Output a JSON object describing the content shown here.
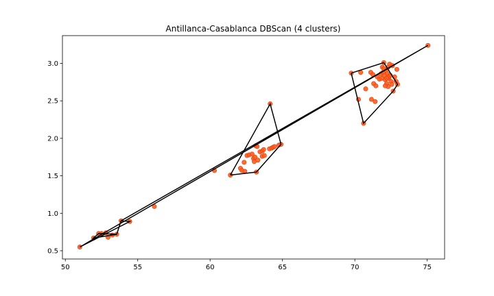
{
  "chart_data": {
    "type": "scatter",
    "title": "Antillanca-Casablanca DBScan (4 clusters)",
    "xlabel": "",
    "ylabel": "",
    "xlim": [
      49.8,
      76.2
    ],
    "ylim": [
      0.39,
      3.37
    ],
    "xticks": [
      50,
      55,
      60,
      65,
      70,
      75
    ],
    "yticks": [
      0.5,
      1.0,
      1.5,
      2.0,
      2.5,
      3.0
    ],
    "xtick_labels": [
      "50",
      "55",
      "60",
      "65",
      "70",
      "75"
    ],
    "ytick_labels": [
      "0.5",
      "1.0",
      "1.5",
      "2.0",
      "2.5",
      "3.0"
    ],
    "grid": false,
    "point_color": "#ff5a1f",
    "point_edge_color": "#d9480f",
    "line_color": "#000000",
    "points": [
      [
        51.0,
        0.55
      ],
      [
        51.95,
        0.67
      ],
      [
        52.3,
        0.73
      ],
      [
        52.5,
        0.73
      ],
      [
        52.8,
        0.74
      ],
      [
        52.95,
        0.68
      ],
      [
        53.25,
        0.71
      ],
      [
        53.55,
        0.72
      ],
      [
        53.85,
        0.9
      ],
      [
        54.45,
        0.89
      ],
      [
        56.15,
        1.09
      ],
      [
        60.3,
        1.57
      ],
      [
        61.4,
        1.51
      ],
      [
        62.1,
        1.6
      ],
      [
        62.2,
        1.57
      ],
      [
        62.35,
        1.68
      ],
      [
        62.4,
        1.56
      ],
      [
        62.55,
        1.77
      ],
      [
        62.7,
        1.78
      ],
      [
        62.9,
        1.79
      ],
      [
        63.0,
        1.73
      ],
      [
        63.05,
        1.69
      ],
      [
        63.1,
        1.75
      ],
      [
        63.15,
        1.9
      ],
      [
        63.2,
        1.55
      ],
      [
        63.25,
        1.89
      ],
      [
        63.3,
        1.71
      ],
      [
        63.45,
        1.82
      ],
      [
        63.6,
        1.83
      ],
      [
        63.6,
        1.76
      ],
      [
        63.7,
        1.85
      ],
      [
        63.75,
        1.77
      ],
      [
        64.1,
        1.86
      ],
      [
        64.25,
        1.87
      ],
      [
        64.35,
        1.88
      ],
      [
        64.45,
        1.89
      ],
      [
        64.75,
        1.91
      ],
      [
        64.9,
        1.92
      ],
      [
        64.15,
        2.46
      ],
      [
        69.75,
        2.87
      ],
      [
        70.25,
        2.52
      ],
      [
        70.4,
        2.88
      ],
      [
        70.6,
        2.2
      ],
      [
        70.75,
        2.66
      ],
      [
        71.1,
        2.88
      ],
      [
        71.15,
        2.52
      ],
      [
        71.25,
        2.85
      ],
      [
        71.3,
        2.73
      ],
      [
        71.4,
        2.49
      ],
      [
        71.45,
        2.7
      ],
      [
        71.55,
        2.82
      ],
      [
        71.7,
        2.79
      ],
      [
        71.8,
        2.86
      ],
      [
        71.85,
        2.8
      ],
      [
        71.9,
        2.95
      ],
      [
        71.95,
        2.88
      ],
      [
        72.0,
        3.01
      ],
      [
        72.05,
        2.84
      ],
      [
        72.1,
        2.78
      ],
      [
        72.15,
        2.91
      ],
      [
        72.2,
        2.73
      ],
      [
        72.25,
        2.86
      ],
      [
        72.3,
        2.95
      ],
      [
        72.3,
        2.69
      ],
      [
        72.35,
        2.8
      ],
      [
        72.4,
        2.99
      ],
      [
        72.45,
        2.84
      ],
      [
        72.5,
        2.76
      ],
      [
        72.55,
        2.72
      ],
      [
        72.6,
        2.97
      ],
      [
        72.65,
        2.63
      ],
      [
        72.75,
        2.82
      ],
      [
        72.85,
        2.76
      ],
      [
        72.9,
        2.92
      ],
      [
        72.95,
        2.72
      ],
      [
        72.1,
        2.7
      ],
      [
        72.3,
        2.82
      ],
      [
        72.0,
        2.93
      ],
      [
        72.2,
        2.8
      ],
      [
        75.05,
        3.24
      ]
    ],
    "polygons": [
      [
        [
          51.0,
          0.55
        ],
        [
          54.45,
          0.89
        ],
        [
          53.85,
          0.9
        ],
        [
          53.55,
          0.72
        ],
        [
          52.3,
          0.73
        ],
        [
          51.95,
          0.67
        ],
        [
          53.55,
          0.72
        ],
        [
          53.85,
          0.9
        ],
        [
          75.05,
          3.24
        ],
        [
          51.0,
          0.55
        ]
      ],
      [
        [
          61.4,
          1.51
        ],
        [
          63.2,
          1.55
        ],
        [
          64.9,
          1.92
        ],
        [
          64.15,
          2.46
        ],
        [
          61.4,
          1.51
        ]
      ],
      [
        [
          69.75,
          2.87
        ],
        [
          72.0,
          3.01
        ],
        [
          72.95,
          2.72
        ],
        [
          72.65,
          2.63
        ],
        [
          70.6,
          2.2
        ],
        [
          69.75,
          2.87
        ]
      ]
    ]
  }
}
